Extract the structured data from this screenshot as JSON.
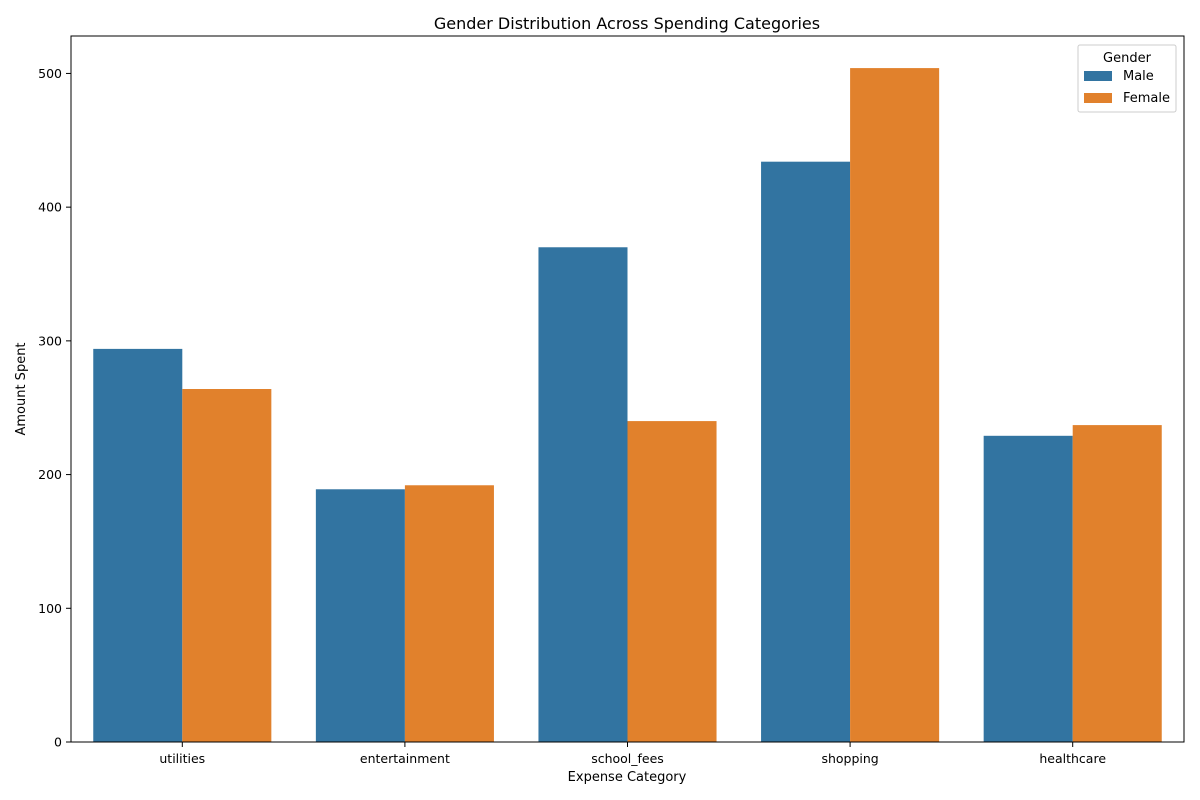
{
  "chart_data": {
    "type": "bar",
    "title": "Gender Distribution Across Spending Categories",
    "xlabel": "Expense Category",
    "ylabel": "Amount Spent",
    "categories": [
      "utilities",
      "entertainment",
      "school_fees",
      "shopping",
      "healthcare"
    ],
    "series": [
      {
        "name": "Male",
        "color": "#3274a1",
        "values": [
          294,
          189,
          370,
          434,
          229
        ]
      },
      {
        "name": "Female",
        "color": "#e1812c",
        "values": [
          264,
          192,
          240,
          504,
          237
        ]
      }
    ],
    "ylim": [
      0,
      528
    ],
    "yticks": [
      "0",
      "100",
      "200",
      "300",
      "400",
      "500"
    ],
    "grid": false,
    "legend": {
      "title": "Gender",
      "placement": "top-right"
    }
  }
}
